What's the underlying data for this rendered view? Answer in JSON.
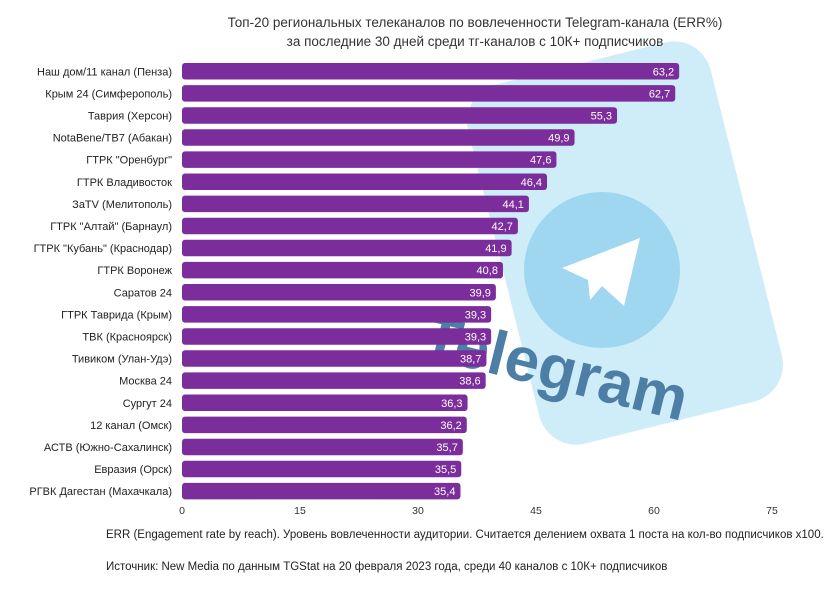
{
  "chart_data": {
    "type": "bar",
    "orientation": "horizontal",
    "title": [
      "Топ-20 региональных телеканалов по вовлеченности Telegram-канала (ERR%)",
      "за последние 30 дней среди тг-каналов с 10К+ подписчиков"
    ],
    "categories": [
      "Наш дом/11 канал (Пенза)",
      "Крым 24 (Симферополь)",
      "Таврия (Херсон)",
      "NotaBene/ТВ7 (Абакан)",
      "ГТРК \"Оренбург\"",
      "ГТРК Владивосток",
      "ЗаTV (Мелитополь)",
      "ГТРК \"Алтай\" (Барнаул)",
      "ГТРК \"Кубань\" (Краснодар)",
      "ГТРК Воронеж",
      "Саратов 24",
      "ГТРК Таврида (Крым)",
      "ТВК (Красноярск)",
      "Тивиком (Улан-Удэ)",
      "Москва 24",
      "Сургут 24",
      "12 канал (Омск)",
      "АСТВ (Южно-Сахалинск)",
      "Евразия (Орск)",
      "РГВК Дагестан (Махачкала)"
    ],
    "values": [
      63.2,
      62.7,
      55.3,
      49.9,
      47.6,
      46.4,
      44.1,
      42.7,
      41.9,
      40.8,
      39.9,
      39.3,
      39.3,
      38.7,
      38.6,
      36.3,
      36.2,
      35.7,
      35.5,
      35.4
    ],
    "value_labels": [
      "63,2",
      "62,7",
      "55,3",
      "49,9",
      "47,6",
      "46,4",
      "44,1",
      "42,7",
      "41,9",
      "40,8",
      "39,9",
      "39,3",
      "39,3",
      "38,7",
      "38,6",
      "36,3",
      "36,2",
      "35,7",
      "35,5",
      "35,4"
    ],
    "xticks": [
      "0",
      "15",
      "30",
      "45",
      "60",
      "75"
    ],
    "xlim": [
      0,
      75
    ],
    "bar_color": "#7b2d9b",
    "grid": false
  },
  "background": {
    "logo_text": "Telegram",
    "colors": {
      "phone": "#bfe6f7",
      "logo_circle": "#9fd7f0",
      "text": "#4d7fa6"
    }
  },
  "notes": {
    "definition": "ERR (Engagement rate by reach). Уровень вовлеченности аудитории. Считается делением охвата 1 поста на кол-во подписчиков х100.",
    "source": "Источник: New Media по данным TGStat на 20 февраля 2023 года, среди 40 каналов с 10К+ подписчиков"
  }
}
